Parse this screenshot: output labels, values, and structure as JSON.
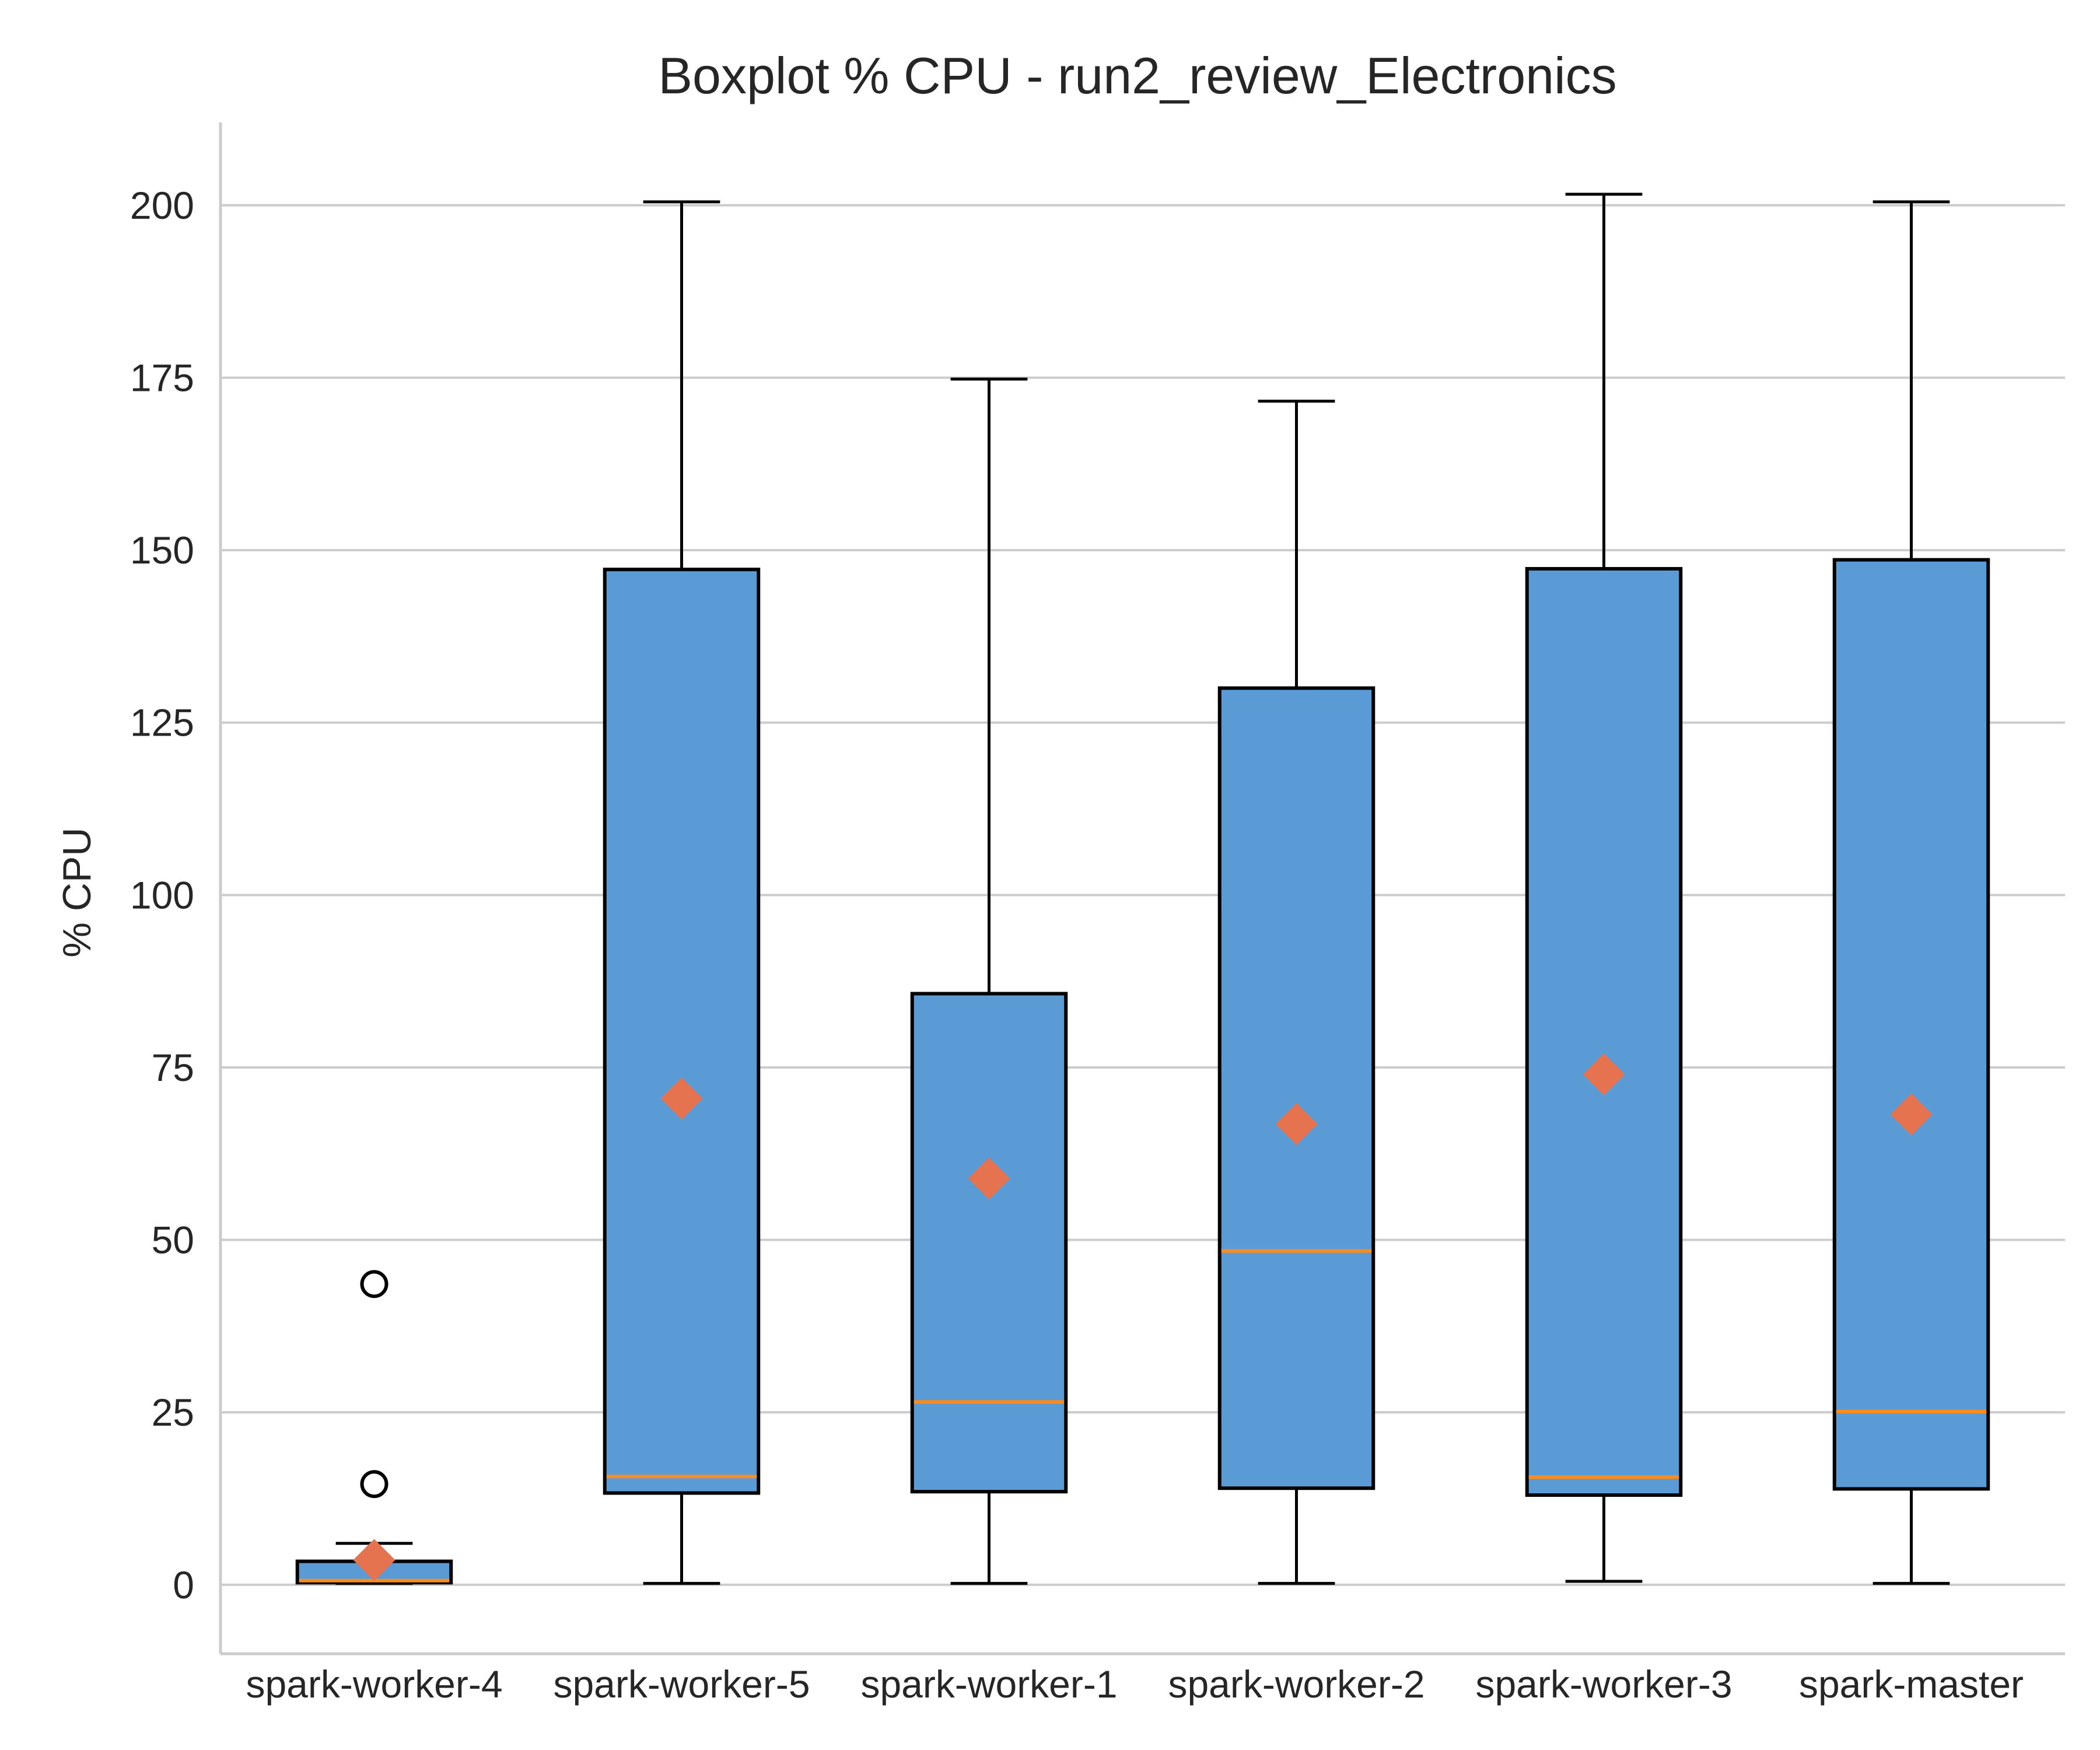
{
  "chart_data": {
    "type": "boxplot",
    "title": "Boxplot % CPU - run2_review_Electronics",
    "xlabel": "",
    "ylabel": "% CPU",
    "ylim": [
      -10,
      212
    ],
    "yticks": [
      0,
      25,
      50,
      75,
      100,
      125,
      150,
      175,
      200
    ],
    "grid": "horizontal",
    "categories": [
      "spark-worker-4",
      "spark-worker-5",
      "spark-worker-1",
      "spark-worker-2",
      "spark-worker-3",
      "spark-master"
    ],
    "boxes": [
      {
        "category": "spark-worker-4",
        "whisker_low": 0.2,
        "q1": 0.3,
        "median": 0.6,
        "q3": 3.4,
        "whisker_high": 6.0,
        "mean": 3.6,
        "outliers": [
          14.6,
          43.6
        ]
      },
      {
        "category": "spark-worker-5",
        "whisker_low": 0.2,
        "q1": 13.3,
        "median": 15.7,
        "q3": 147.2,
        "whisker_high": 200.5,
        "mean": 70.5,
        "outliers": []
      },
      {
        "category": "spark-worker-1",
        "whisker_low": 0.2,
        "q1": 13.5,
        "median": 26.5,
        "q3": 85.7,
        "whisker_high": 174.8,
        "mean": 58.9,
        "outliers": []
      },
      {
        "category": "spark-worker-2",
        "whisker_low": 0.2,
        "q1": 14.0,
        "median": 48.4,
        "q3": 130.0,
        "whisker_high": 171.6,
        "mean": 66.8,
        "outliers": []
      },
      {
        "category": "spark-worker-3",
        "whisker_low": 0.5,
        "q1": 13.0,
        "median": 15.6,
        "q3": 147.3,
        "whisker_high": 201.6,
        "mean": 74.0,
        "outliers": []
      },
      {
        "category": "spark-master",
        "whisker_low": 0.2,
        "q1": 13.9,
        "median": 25.1,
        "q3": 148.6,
        "whisker_high": 200.5,
        "mean": 68.2,
        "outliers": []
      }
    ],
    "colors": {
      "box_fill": "#5b9bd5",
      "box_edge": "#000000",
      "median": "#ff8c1a",
      "mean_marker": "#e5734f",
      "grid": "#cccccc"
    }
  }
}
